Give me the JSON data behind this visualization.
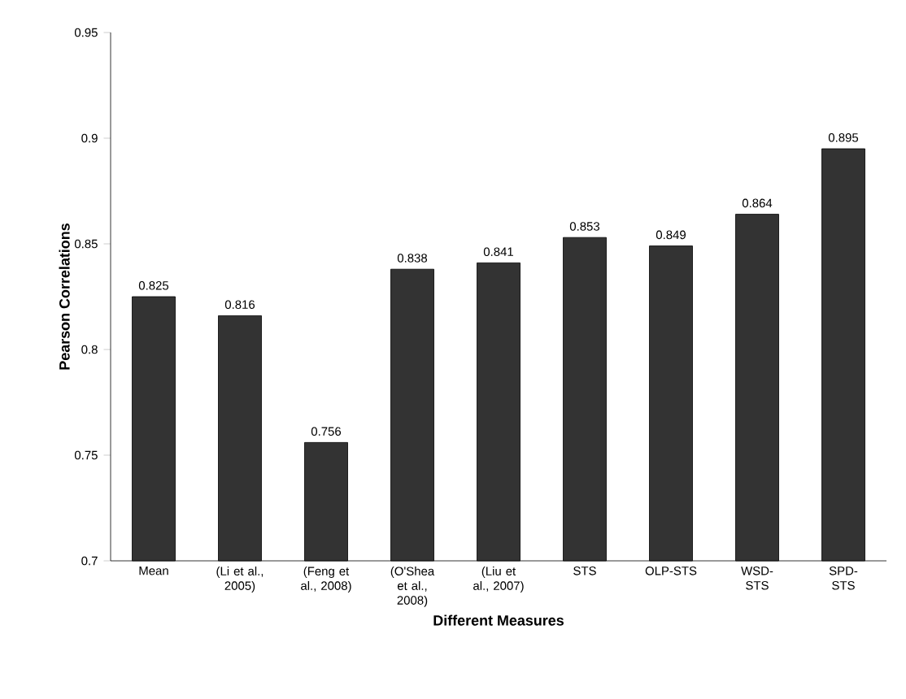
{
  "chart_data": {
    "type": "bar",
    "xlabel": "Different Measures",
    "ylabel": "Pearson Correlations",
    "categories": [
      "Mean",
      "(Li et al., 2005)",
      "(Feng et al., 2008)",
      "(O'Shea et al., 2008)",
      "(Liu et al., 2007)",
      "STS",
      "OLP-STS",
      "WSD-STS",
      "SPD-STS"
    ],
    "values": [
      0.825,
      0.816,
      0.756,
      0.838,
      0.841,
      0.853,
      0.849,
      0.864,
      0.895
    ],
    "color": "#333333",
    "ylim": [
      0.7,
      0.95
    ],
    "yticks": [
      0.7,
      0.75,
      0.8,
      0.85,
      0.9,
      0.95
    ],
    "data_labels": true
  }
}
